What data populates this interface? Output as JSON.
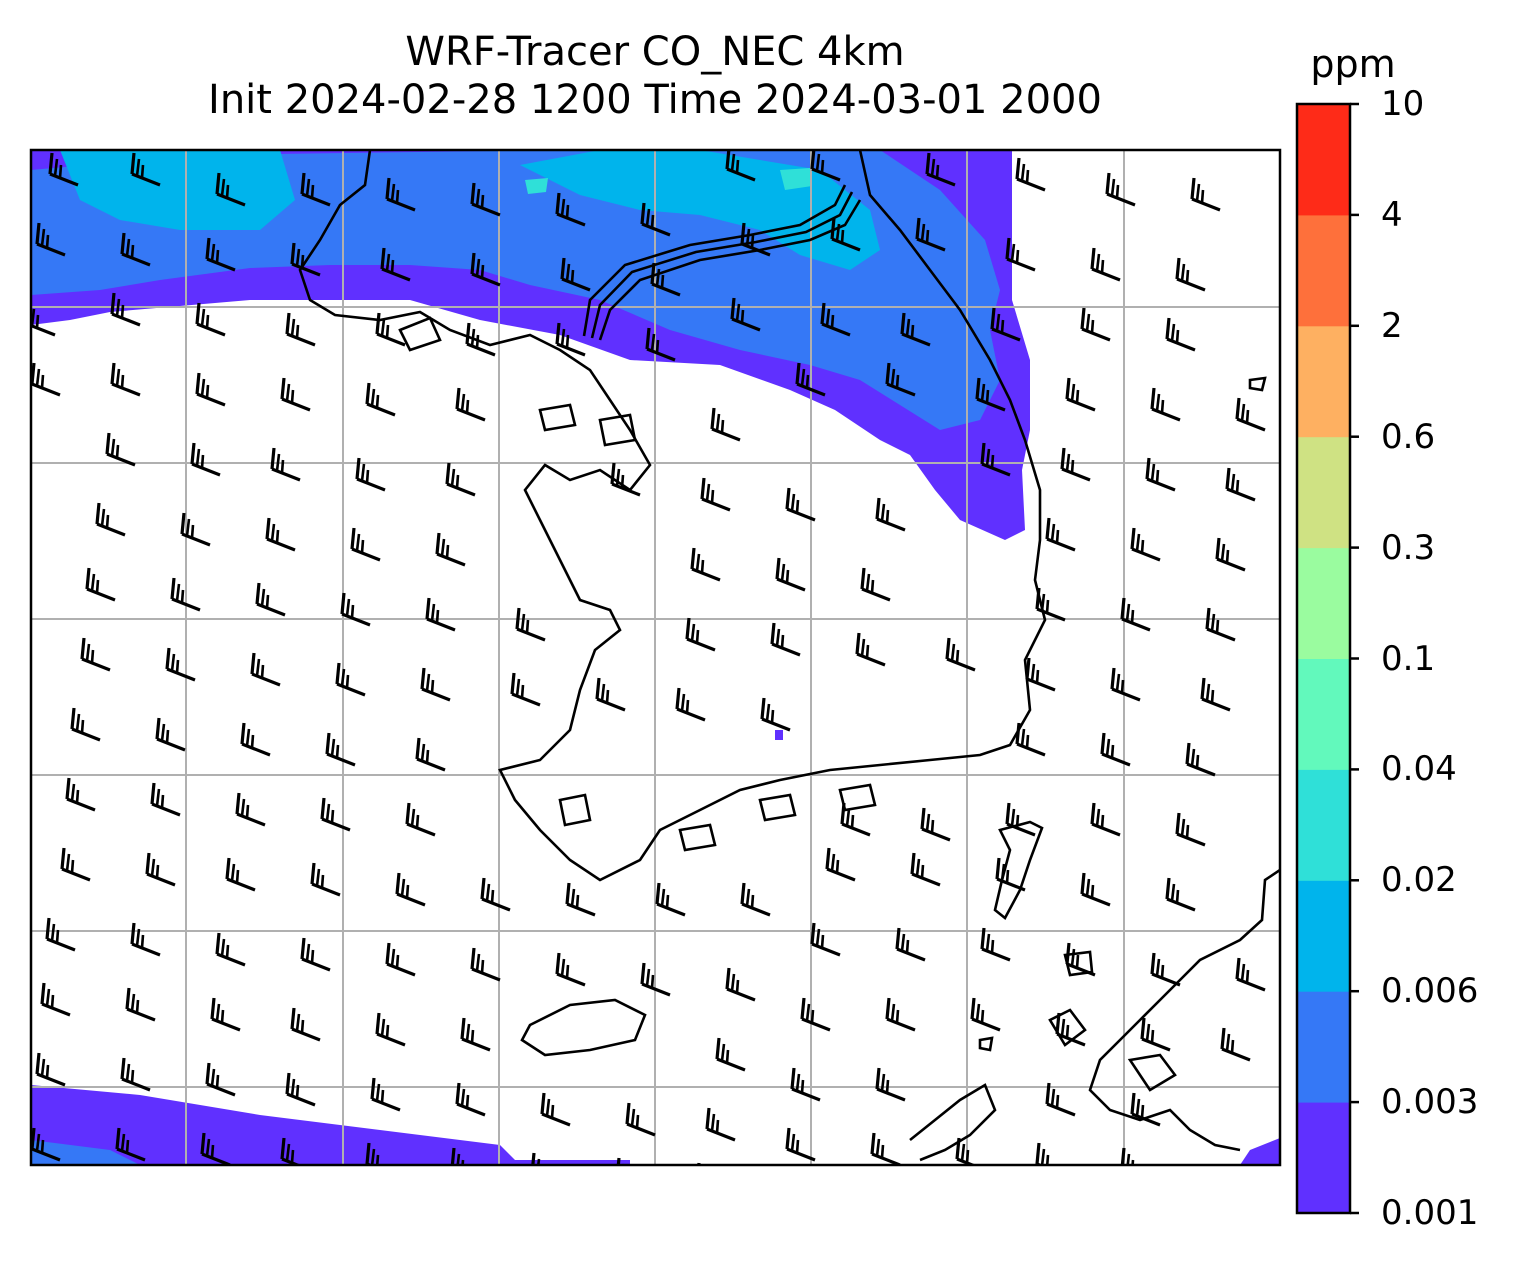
{
  "title": {
    "line1": "WRF-Tracer CO_NEC 4km",
    "line2": "Init 2024-02-28 1200 Time 2024-03-01 2000"
  },
  "colorbar": {
    "unit": "ppm",
    "levels": [
      "0.001",
      "0.003",
      "0.006",
      "0.02",
      "0.04",
      "0.1",
      "0.3",
      "0.6",
      "2",
      "4",
      "10"
    ],
    "colors": [
      "#6030ff",
      "#3578f6",
      "#00b4ec",
      "#2fe0d8",
      "#62f9bc",
      "#9afc9f",
      "#cfe283",
      "#feb061",
      "#fe703b",
      "#fe2b18"
    ]
  },
  "map": {
    "field": "CO tracer concentration",
    "overlays": [
      "wind-barbs",
      "coastlines",
      "borders",
      "gridlines"
    ]
  }
}
